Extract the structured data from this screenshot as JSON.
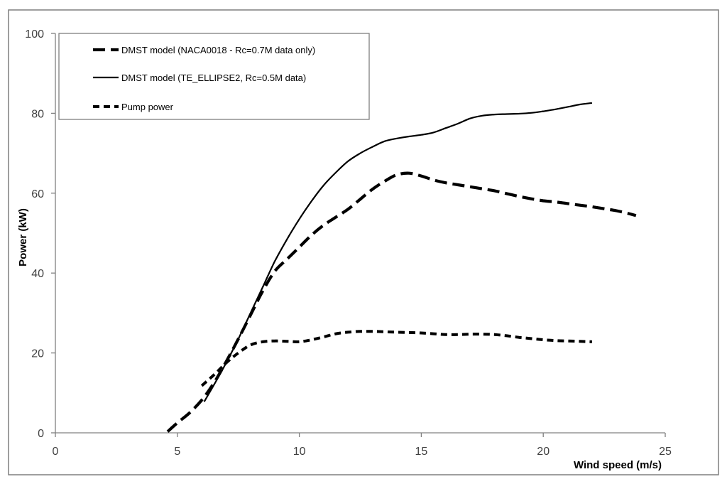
{
  "chart_data": {
    "type": "line",
    "title": "",
    "xlabel": "Wind speed  (m/s)",
    "ylabel": "Power (kW)",
    "xlim": [
      0,
      25
    ],
    "ylim": [
      0,
      100
    ],
    "xticks": [
      0,
      5,
      10,
      15,
      20,
      25
    ],
    "yticks": [
      0,
      20,
      40,
      60,
      80,
      100
    ],
    "grid": false,
    "legend_position": "top-left",
    "series": [
      {
        "name": "DMST model (NACA0018 - Rc=0.7M data only)",
        "style": "long-dash-thick",
        "color": "#000000",
        "x": [
          4.6,
          5,
          5.5,
          6,
          6.5,
          7,
          7.5,
          8,
          8.5,
          9,
          9.5,
          10,
          10.5,
          11,
          11.5,
          12,
          12.5,
          13,
          13.5,
          14,
          14.5,
          15,
          15.5,
          16,
          16.5,
          17,
          17.5,
          18,
          18.5,
          19,
          19.5,
          20,
          20.5,
          21,
          21.5,
          22,
          22.5,
          23,
          23.5,
          23.8
        ],
        "y": [
          0.3,
          2.5,
          5,
          8.2,
          12.5,
          17.8,
          23.5,
          29.5,
          35.5,
          40.5,
          43.5,
          46.5,
          49.5,
          52.0,
          54.0,
          56.0,
          58.5,
          61.0,
          63.0,
          64.6,
          65.0,
          64.3,
          63.3,
          62.6,
          62.1,
          61.6,
          61.1,
          60.6,
          59.9,
          59.2,
          58.6,
          58.1,
          57.8,
          57.4,
          57.0,
          56.6,
          56.1,
          55.6,
          54.9,
          54.4
        ]
      },
      {
        "name": "DMST model (TE_ELLIPSE2,  Rc=0.5M data)",
        "style": "solid",
        "color": "#000000",
        "x": [
          6.1,
          6.5,
          7,
          7.5,
          8,
          8.5,
          9,
          9.5,
          10,
          10.5,
          11,
          11.5,
          12,
          12.5,
          13,
          13.5,
          14,
          14.5,
          15,
          15.5,
          16,
          16.5,
          17,
          17.5,
          18,
          18.5,
          19,
          19.5,
          20,
          20.5,
          21,
          21.5,
          22
        ],
        "y": [
          7.8,
          12.0,
          17.5,
          23.5,
          30.0,
          36.5,
          43.0,
          48.5,
          53.5,
          58.0,
          62.0,
          65.2,
          68.0,
          70.0,
          71.6,
          73.0,
          73.7,
          74.2,
          74.6,
          75.2,
          76.3,
          77.4,
          78.7,
          79.4,
          79.7,
          79.8,
          79.9,
          80.1,
          80.5,
          81.0,
          81.6,
          82.2,
          82.6
        ]
      },
      {
        "name": "Pump power",
        "style": "short-dash",
        "color": "#000000",
        "x": [
          6,
          6.5,
          7,
          7.5,
          8,
          8.5,
          9,
          9.5,
          10,
          10.5,
          11,
          11.5,
          12,
          12.5,
          13,
          13.5,
          14,
          14.5,
          15,
          15.5,
          16,
          16.5,
          17,
          17.5,
          18,
          18.5,
          19,
          19.5,
          20,
          20.5,
          21,
          21.5,
          22
        ],
        "y": [
          11.8,
          14.5,
          17.5,
          20.0,
          22.0,
          22.8,
          23.0,
          22.9,
          22.8,
          23.3,
          24.0,
          24.8,
          25.2,
          25.4,
          25.4,
          25.3,
          25.2,
          25.1,
          25.0,
          24.8,
          24.6,
          24.6,
          24.7,
          24.7,
          24.6,
          24.3,
          23.9,
          23.6,
          23.3,
          23.1,
          23.0,
          22.9,
          22.8
        ]
      }
    ]
  }
}
